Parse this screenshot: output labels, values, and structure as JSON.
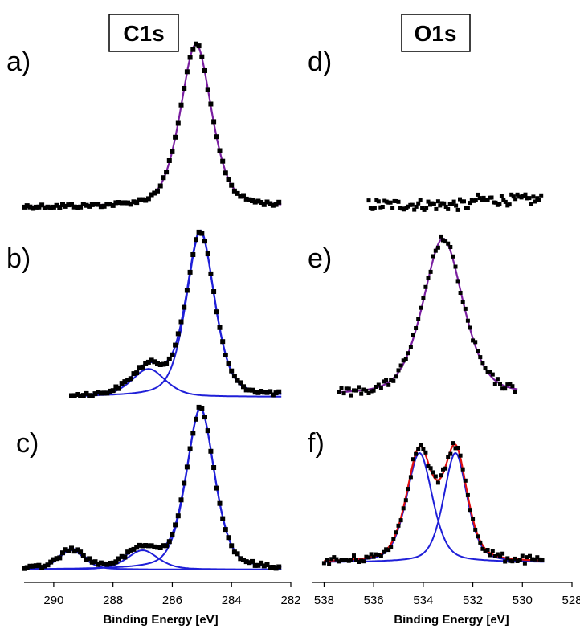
{
  "titles": {
    "left": "C1s",
    "right": "O1s"
  },
  "panel_labels": [
    "a)",
    "b)",
    "c)",
    "d)",
    "e)",
    "f)"
  ],
  "colors": {
    "points": "#000000",
    "component": "#1f1fd8",
    "envelope": "#e01010",
    "single_fit": "#7a1fa0"
  },
  "chart_data": [
    {
      "type": "scatter",
      "title": "C1s",
      "xlabel": "Binding Energy [eV]",
      "xlim": [
        291,
        282
      ],
      "xticks": [
        "290",
        "288",
        "286",
        "284",
        "282"
      ],
      "grid": false,
      "axes": "reversed binding-energy axis, stacked spectra a-c",
      "spectra": [
        {
          "label": "a)",
          "range": [
            291,
            282.3
          ],
          "components": [
            {
              "center": 285.2,
              "height": 1.0,
              "width": 0.55
            }
          ],
          "envelope_color": "single_fit"
        },
        {
          "label": "b)",
          "range": [
            289.4,
            282.3
          ],
          "components": [
            {
              "center": 285.05,
              "height": 1.0,
              "width": 0.5
            },
            {
              "center": 286.8,
              "height": 0.17,
              "width": 0.6
            }
          ],
          "envelope_color": "component"
        },
        {
          "label": "c)",
          "range": [
            291,
            282.3
          ],
          "components": [
            {
              "center": 285.05,
              "height": 1.0,
              "width": 0.5
            },
            {
              "center": 287.0,
              "height": 0.12,
              "width": 0.55
            },
            {
              "center": 289.4,
              "height": 0.12,
              "width": 0.45
            }
          ],
          "envelope_color": "component"
        }
      ]
    },
    {
      "type": "scatter",
      "title": "O1s",
      "xlabel": "Binding Energy [eV]",
      "xlim": [
        538.5,
        528
      ],
      "xticks": [
        "538",
        "536",
        "534",
        "532",
        "530",
        "528"
      ],
      "grid": false,
      "axes": "reversed binding-energy axis, stacked spectra d-f",
      "spectra": [
        {
          "label": "d)",
          "range": [
            536.2,
            529.2
          ],
          "components": [],
          "noise_only": true
        },
        {
          "label": "e)",
          "range": [
            537.4,
            530.2
          ],
          "components": [
            {
              "center": 533.2,
              "height": 1.0,
              "width": 0.85
            }
          ],
          "envelope_color": "single_fit"
        },
        {
          "label": "f)",
          "range": [
            538,
            529.1
          ],
          "components": [
            {
              "center": 534.15,
              "height": 0.8,
              "width": 0.55
            },
            {
              "center": 532.7,
              "height": 0.8,
              "width": 0.5
            }
          ],
          "envelope_color": "envelope"
        }
      ]
    }
  ]
}
